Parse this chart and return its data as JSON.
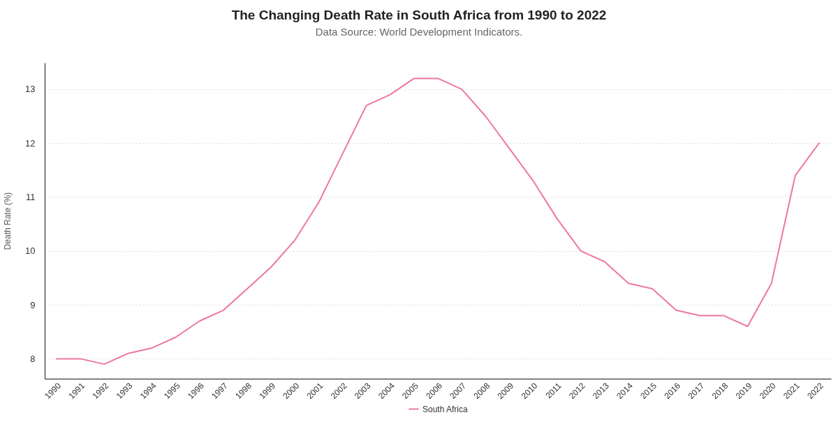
{
  "chart_data": {
    "type": "line",
    "title": "The Changing Death Rate in South Africa from 1990 to 2022",
    "subtitle": "Data Source: World Development Indicators.",
    "ylabel": "Death Rate (%)",
    "categories": [
      "1990",
      "1991",
      "1992",
      "1993",
      "1994",
      "1995",
      "1996",
      "1997",
      "1998",
      "1999",
      "2000",
      "2001",
      "2002",
      "2003",
      "2004",
      "2005",
      "2006",
      "2007",
      "2008",
      "2009",
      "2010",
      "2011",
      "2012",
      "2013",
      "2014",
      "2015",
      "2016",
      "2017",
      "2018",
      "2019",
      "2020",
      "2021",
      "2022"
    ],
    "series": [
      {
        "name": "South Africa",
        "color": "#ee77a2",
        "values": [
          8.0,
          8.0,
          7.9,
          8.1,
          8.2,
          8.4,
          8.7,
          8.9,
          9.3,
          9.7,
          10.2,
          10.9,
          11.8,
          12.7,
          12.9,
          13.2,
          13.2,
          13.0,
          12.5,
          11.9,
          11.3,
          10.6,
          10.0,
          9.8,
          9.4,
          9.3,
          8.9,
          8.8,
          8.8,
          8.6,
          9.4,
          11.4,
          12.0
        ]
      }
    ],
    "ylim": [
      7.63,
      13.49
    ],
    "yticks": [
      8,
      9,
      10,
      11,
      12,
      13
    ],
    "grid": "y",
    "legend": "bottom",
    "marker": "none",
    "line_style": "solid"
  }
}
